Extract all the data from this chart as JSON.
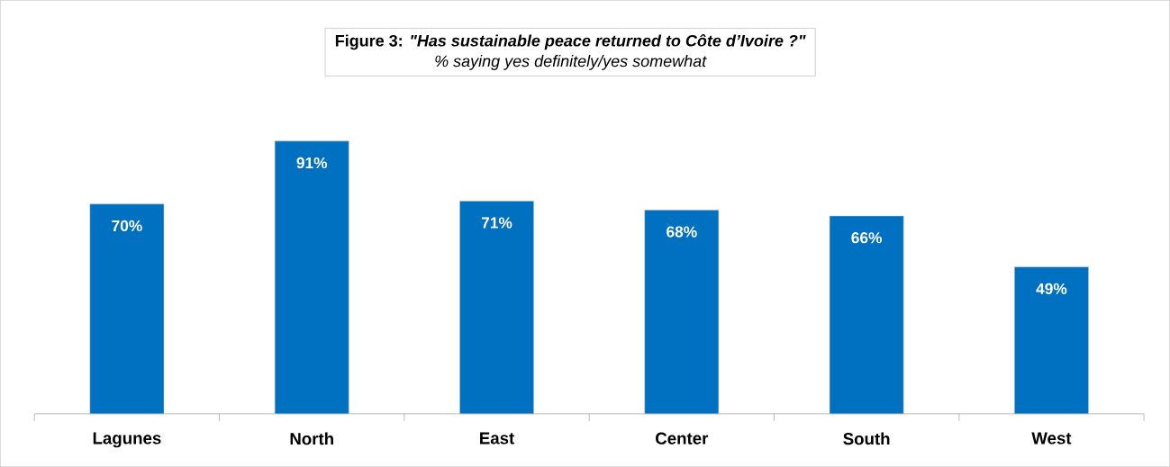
{
  "chart_data": {
    "type": "bar",
    "title": "Figure 3: *\"Has sustainable peace returned to Côte d’Ivoire ?\"*",
    "subtitle": "% saying yes definitely/yes somewhat",
    "categories": [
      "Lagunes",
      "North",
      "East",
      "Center",
      "South",
      "West"
    ],
    "values": [
      70,
      91,
      71,
      68,
      66,
      49
    ],
    "value_labels": [
      "70%",
      "91%",
      "71%",
      "68%",
      "66%",
      "49%"
    ],
    "color": "#0070c0"
  }
}
